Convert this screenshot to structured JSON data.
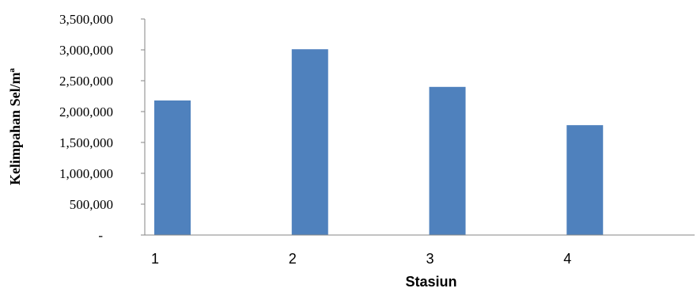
{
  "chart_data": {
    "type": "bar",
    "categories": [
      "1",
      "2",
      "3",
      "4"
    ],
    "values": [
      2180000,
      3010000,
      2400000,
      1780000
    ],
    "xlabel": "Stasiun",
    "ylabel": "Kelimpahan Sel/mª",
    "ylim": [
      0,
      3500000
    ],
    "yticks": [
      0,
      500000,
      1000000,
      1500000,
      2000000,
      2500000,
      3000000,
      3500000
    ],
    "ytick_labels": [
      "-",
      "500,000",
      "1,000,000",
      "1,500,000",
      "2,000,000",
      "2,500,000",
      "3,000,000",
      "3,500,000"
    ],
    "grid": false,
    "legend": "none",
    "bar_color": "#4F81BD",
    "axis_color": "#868686"
  }
}
